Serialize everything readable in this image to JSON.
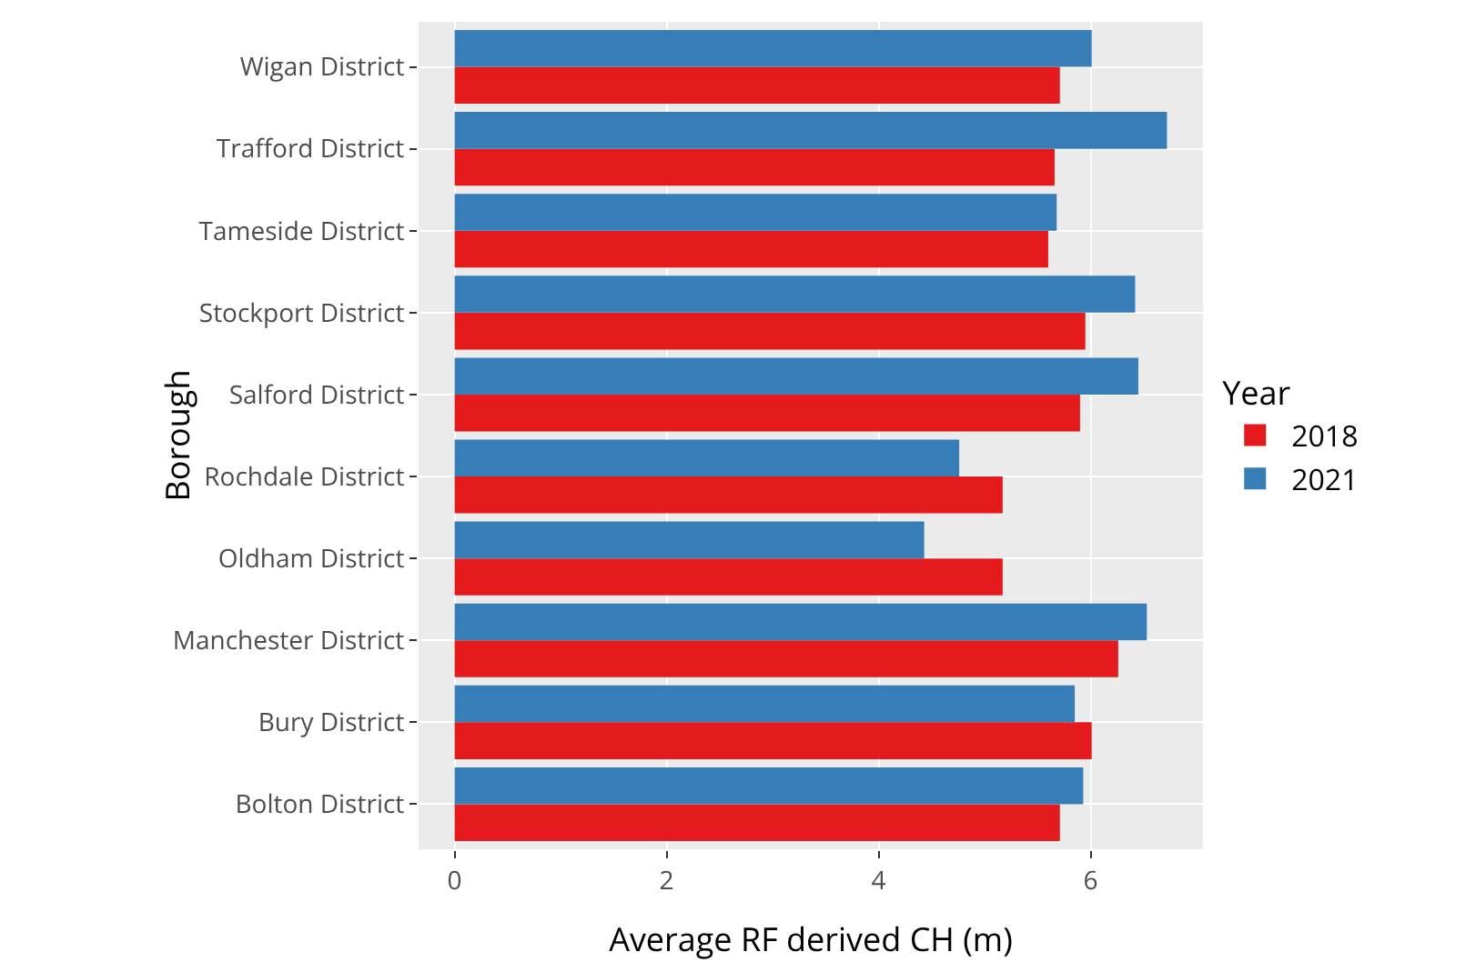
{
  "chart_data": {
    "type": "bar",
    "orientation": "horizontal",
    "xlabel": "Average RF derived CH (m)",
    "ylabel": "Borough",
    "legend_title": "Year",
    "categories": [
      "Wigan District",
      "Trafford District",
      "Tameside District",
      "Stockport District",
      "Salford District",
      "Rochdale District",
      "Oldham District",
      "Manchester District",
      "Bury District",
      "Bolton District"
    ],
    "series": [
      {
        "name": "2018",
        "color": "#e41a1c",
        "values": [
          5.71,
          5.66,
          5.6,
          5.95,
          5.9,
          5.17,
          5.17,
          6.26,
          6.01,
          5.71
        ]
      },
      {
        "name": "2021",
        "color": "#377eb8",
        "values": [
          6.01,
          6.72,
          5.68,
          6.42,
          6.45,
          4.76,
          4.43,
          6.53,
          5.85,
          5.93
        ]
      }
    ],
    "xlim": [
      -0.34,
      7.06
    ],
    "xticks": [
      0,
      2,
      4,
      6
    ],
    "grid": true,
    "legend": "right"
  }
}
